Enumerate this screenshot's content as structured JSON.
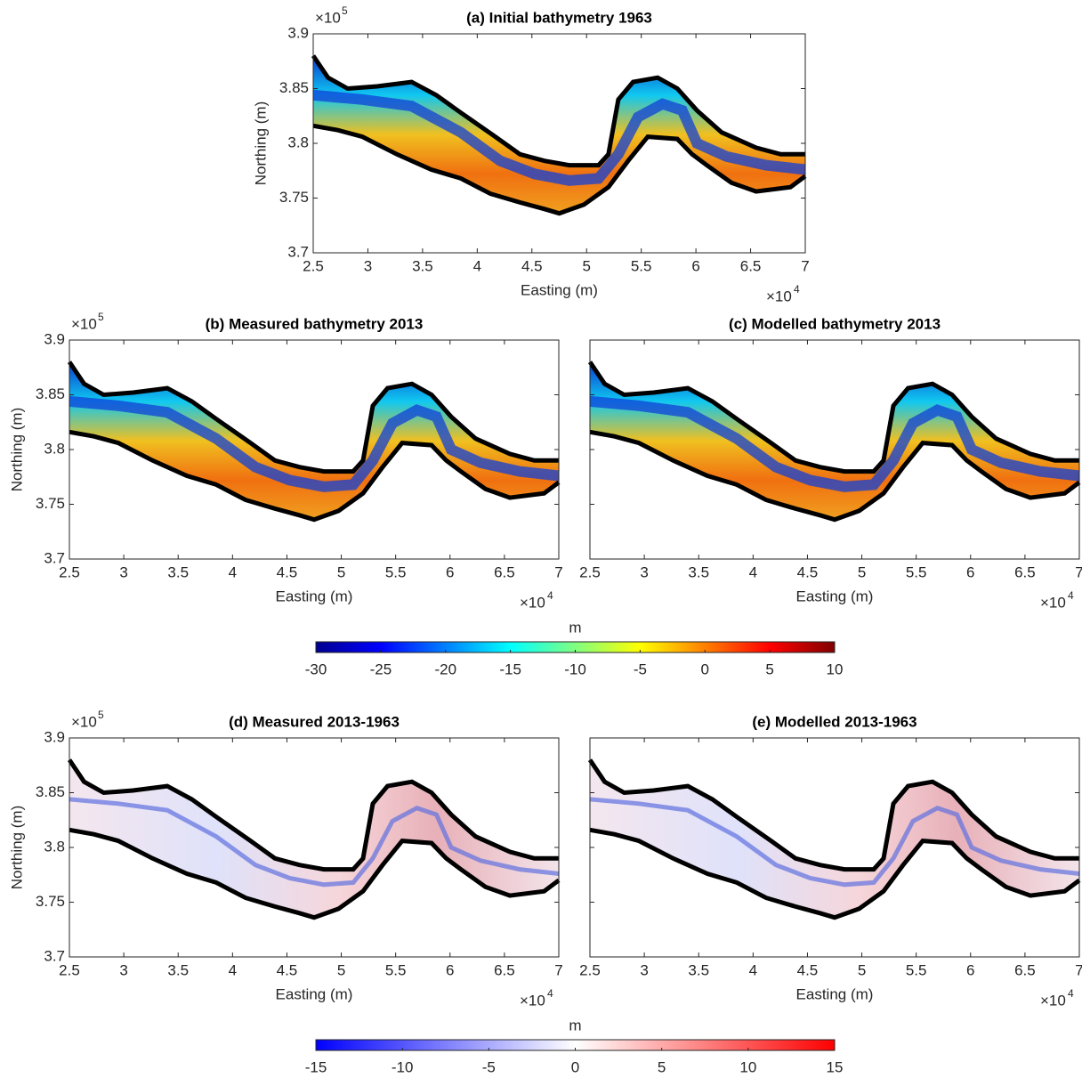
{
  "chart_data": [
    {
      "type": "map",
      "title": "(a) Initial bathymetry 1963",
      "xlabel": "Easting (m)",
      "ylabel": "Northing (m)",
      "x_scale_label": {
        "base": "×10",
        "exponent": "4"
      },
      "y_scale_label": {
        "base": "×10",
        "exponent": "5"
      },
      "xlim": [
        25000,
        70000
      ],
      "xticks": [
        {
          "value": 25000,
          "label": "2.5"
        },
        {
          "value": 30000,
          "label": "3"
        },
        {
          "value": 35000,
          "label": "3.5"
        },
        {
          "value": 40000,
          "label": "4"
        },
        {
          "value": 45000,
          "label": "4.5"
        },
        {
          "value": 50000,
          "label": "5"
        },
        {
          "value": 55000,
          "label": "5.5"
        },
        {
          "value": 60000,
          "label": "6"
        },
        {
          "value": 65000,
          "label": "6.5"
        },
        {
          "value": 70000,
          "label": "7"
        }
      ],
      "ylim": [
        370000,
        390000
      ],
      "yticks": [
        {
          "value": 370000,
          "label": "3.7"
        },
        {
          "value": 375000,
          "label": "3.75"
        },
        {
          "value": 380000,
          "label": "3.8"
        },
        {
          "value": 385000,
          "label": "3.85"
        },
        {
          "value": 390000,
          "label": "3.9"
        }
      ]
    },
    {
      "type": "map",
      "title": "(b) Measured bathymetry 2013",
      "xlabel": "Easting (m)",
      "ylabel": "Northing (m)",
      "x_scale_label": {
        "base": "×10",
        "exponent": "4"
      },
      "y_scale_label": {
        "base": "×10",
        "exponent": "5"
      },
      "xlim": [
        25000,
        70000
      ],
      "xticks": [
        {
          "value": 25000,
          "label": "2.5"
        },
        {
          "value": 30000,
          "label": "3"
        },
        {
          "value": 35000,
          "label": "3.5"
        },
        {
          "value": 40000,
          "label": "4"
        },
        {
          "value": 45000,
          "label": "4.5"
        },
        {
          "value": 50000,
          "label": "5"
        },
        {
          "value": 55000,
          "label": "5.5"
        },
        {
          "value": 60000,
          "label": "6"
        },
        {
          "value": 65000,
          "label": "6.5"
        },
        {
          "value": 70000,
          "label": "7"
        }
      ],
      "ylim": [
        370000,
        390000
      ],
      "yticks": [
        {
          "value": 370000,
          "label": "3.7"
        },
        {
          "value": 375000,
          "label": "3.75"
        },
        {
          "value": 380000,
          "label": "3.8"
        },
        {
          "value": 385000,
          "label": "3.85"
        },
        {
          "value": 390000,
          "label": "3.9"
        }
      ]
    },
    {
      "type": "map",
      "title": "(c) Modelled bathymetry 2013",
      "xlabel": "Easting (m)",
      "x_scale_label": {
        "base": "×10",
        "exponent": "4"
      },
      "xlim": [
        25000,
        70000
      ],
      "xticks": [
        {
          "value": 25000,
          "label": "2.5"
        },
        {
          "value": 30000,
          "label": "3"
        },
        {
          "value": 35000,
          "label": "3.5"
        },
        {
          "value": 40000,
          "label": "4"
        },
        {
          "value": 45000,
          "label": "4.5"
        },
        {
          "value": 50000,
          "label": "5"
        },
        {
          "value": 55000,
          "label": "5.5"
        },
        {
          "value": 60000,
          "label": "6"
        },
        {
          "value": 65000,
          "label": "6.5"
        },
        {
          "value": 70000,
          "label": "7"
        }
      ],
      "ylim": [
        370000,
        390000
      ],
      "yticks": [
        370000,
        375000,
        380000,
        385000,
        390000
      ]
    },
    {
      "type": "colorbar",
      "label": "m",
      "lim": [
        -30,
        10
      ],
      "ticks": [
        -30,
        -25,
        -20,
        -15,
        -10,
        -5,
        0,
        5,
        10
      ],
      "colormap": [
        "#00008f",
        "#0000ff",
        "#0080ff",
        "#00ffff",
        "#80ff80",
        "#ffff00",
        "#ff8000",
        "#ff0000",
        "#800000"
      ]
    },
    {
      "type": "map",
      "title": "(d) Measured 2013-1963",
      "xlabel": "Easting (m)",
      "ylabel": "Northing (m)",
      "x_scale_label": {
        "base": "×10",
        "exponent": "4"
      },
      "y_scale_label": {
        "base": "×10",
        "exponent": "5"
      },
      "xlim": [
        25000,
        70000
      ],
      "xticks": [
        {
          "value": 25000,
          "label": "2.5"
        },
        {
          "value": 30000,
          "label": "3"
        },
        {
          "value": 35000,
          "label": "3.5"
        },
        {
          "value": 40000,
          "label": "4"
        },
        {
          "value": 45000,
          "label": "4.5"
        },
        {
          "value": 50000,
          "label": "5"
        },
        {
          "value": 55000,
          "label": "5.5"
        },
        {
          "value": 60000,
          "label": "6"
        },
        {
          "value": 65000,
          "label": "6.5"
        },
        {
          "value": 70000,
          "label": "7"
        }
      ],
      "ylim": [
        370000,
        390000
      ],
      "yticks": [
        {
          "value": 370000,
          "label": "3.7"
        },
        {
          "value": 375000,
          "label": "3.75"
        },
        {
          "value": 380000,
          "label": "3.8"
        },
        {
          "value": 385000,
          "label": "3.85"
        },
        {
          "value": 390000,
          "label": "3.9"
        }
      ]
    },
    {
      "type": "map",
      "title": "(e) Modelled 2013-1963",
      "xlabel": "Easting (m)",
      "x_scale_label": {
        "base": "×10",
        "exponent": "4"
      },
      "xlim": [
        25000,
        70000
      ],
      "xticks": [
        {
          "value": 25000,
          "label": "2.5"
        },
        {
          "value": 30000,
          "label": "3"
        },
        {
          "value": 35000,
          "label": "3.5"
        },
        {
          "value": 40000,
          "label": "4"
        },
        {
          "value": 45000,
          "label": "4.5"
        },
        {
          "value": 50000,
          "label": "5"
        },
        {
          "value": 55000,
          "label": "5.5"
        },
        {
          "value": 60000,
          "label": "6"
        },
        {
          "value": 65000,
          "label": "6.5"
        },
        {
          "value": 70000,
          "label": "7"
        }
      ],
      "ylim": [
        370000,
        390000
      ],
      "yticks": [
        370000,
        375000,
        380000,
        385000,
        390000
      ]
    },
    {
      "type": "colorbar",
      "label": "m",
      "lim": [
        -15,
        15
      ],
      "ticks": [
        -15,
        -10,
        -5,
        0,
        5,
        10,
        15
      ],
      "colormap": [
        "#0000ff",
        "#ffffff",
        "#ff0000"
      ]
    }
  ]
}
